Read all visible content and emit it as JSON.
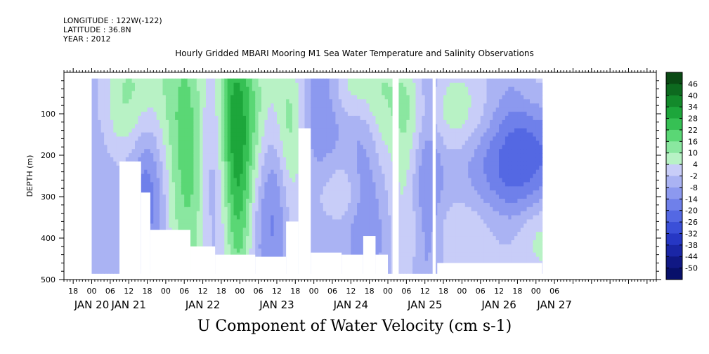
{
  "header": {
    "longitude": "LONGITUDE : 122W(-122)",
    "latitude": "LATITUDE : 36.8N",
    "year": "YEAR : 2012"
  },
  "title": "Hourly Gridded MBARI Mooring M1 Sea Water Temperature and Salinity Observations",
  "bottom_label": "U Component of Water Velocity (cm s-1)",
  "chart_data": {
    "type": "heatmap",
    "variable": "U Component of Water Velocity (cm s-1)",
    "ylabel": "DEPTH (m)",
    "ylim": [
      500,
      0
    ],
    "y_ticks": [
      100,
      200,
      300,
      400,
      500
    ],
    "x_range_hours": [
      -9,
      183
    ],
    "x_hour_labels": [
      "18",
      "00",
      "06",
      "12",
      "18",
      "00",
      "06",
      "12",
      "18",
      "00",
      "06",
      "12",
      "18",
      "00",
      "06",
      "12",
      "18",
      "00",
      "06",
      "12",
      "18",
      "00",
      "06",
      "12",
      "18",
      "00",
      "06"
    ],
    "x_hour_values": [
      -6,
      0,
      6,
      12,
      18,
      24,
      30,
      36,
      42,
      48,
      54,
      60,
      66,
      72,
      78,
      84,
      90,
      96,
      102,
      108,
      114,
      120,
      126,
      132,
      138,
      144,
      150
    ],
    "x_date_labels": [
      "JAN 20",
      "JAN 21",
      "JAN 22",
      "JAN 23",
      "JAN 24",
      "JAN 25",
      "JAN 26",
      "JAN 27"
    ],
    "x_date_values": [
      0,
      12,
      36,
      60,
      84,
      108,
      132,
      150
    ],
    "colorbar": {
      "levels": [
        48,
        46,
        40,
        34,
        28,
        22,
        16,
        10,
        4,
        -2,
        -8,
        -14,
        -20,
        -26,
        -32,
        -38,
        -44,
        -50
      ],
      "labels": [
        "46",
        "40",
        "34",
        "28",
        "22",
        "16",
        "10",
        "4",
        "-2",
        "-8",
        "-14",
        "-20",
        "-26",
        "-32",
        "-38",
        "-44",
        "-50"
      ],
      "colors": [
        "#0a4a14",
        "#0d6a1f",
        "#138a2b",
        "#1da63b",
        "#36c054",
        "#5ad775",
        "#8ae7a0",
        "#b8f2c5",
        "#c8cdf8",
        "#aab3f3",
        "#8c99ef",
        "#6f80ea",
        "#5468e3",
        "#3a4fd8",
        "#2637c4",
        "#1a26a6",
        "#101884",
        "#08106a"
      ]
    },
    "data_start_hour": 0,
    "data_end_hour": 146,
    "surface_depth": 15,
    "bottom_depth": 485,
    "gaps_hours": [
      [
        97.5,
        99.5
      ],
      [
        110.5,
        111.5
      ]
    ],
    "missing_regions": [
      {
        "x": [
          9,
          16
        ],
        "depth_from": 215
      },
      {
        "x": [
          16,
          19
        ],
        "depth_from": 290
      },
      {
        "x": [
          19,
          32
        ],
        "depth_from": 380
      },
      {
        "x": [
          32,
          40
        ],
        "depth_from": 420
      },
      {
        "x": [
          40,
          53
        ],
        "depth_from": 440
      },
      {
        "x": [
          53,
          63
        ],
        "depth_from": 445
      },
      {
        "x": [
          63,
          67
        ],
        "depth_from": 360
      },
      {
        "x": [
          67,
          71
        ],
        "depth_from": 135
      },
      {
        "x": [
          71,
          81
        ],
        "depth_from": 435
      },
      {
        "x": [
          81,
          88
        ],
        "depth_from": 440
      },
      {
        "x": [
          88,
          92
        ],
        "depth_from": 395
      },
      {
        "x": [
          92,
          96
        ],
        "depth_from": 440
      },
      {
        "x": [
          112,
          146
        ],
        "depth_from": 460
      }
    ],
    "velocity_field": [
      {
        "x": 2,
        "depth": 150,
        "value": -10,
        "sx": 6,
        "sy": 300
      },
      {
        "x": 6,
        "depth": 60,
        "value": 8,
        "sx": 6,
        "sy": 120
      },
      {
        "x": 14,
        "depth": 80,
        "value": 12,
        "sx": 6,
        "sy": 120
      },
      {
        "x": 18,
        "depth": 280,
        "value": -22,
        "sx": 5,
        "sy": 150
      },
      {
        "x": 28,
        "depth": 140,
        "value": 14,
        "sx": 6,
        "sy": 250
      },
      {
        "x": 33,
        "depth": 260,
        "value": 10,
        "sx": 4,
        "sy": 250
      },
      {
        "x": 40,
        "depth": 200,
        "value": -16,
        "sx": 4,
        "sy": 200
      },
      {
        "x": 45,
        "depth": 100,
        "value": 28,
        "sx": 4,
        "sy": 200
      },
      {
        "x": 48,
        "depth": 350,
        "value": 14,
        "sx": 3,
        "sy": 200
      },
      {
        "x": 53,
        "depth": 120,
        "value": 16,
        "sx": 4,
        "sy": 150
      },
      {
        "x": 58,
        "depth": 300,
        "value": -18,
        "sx": 5,
        "sy": 200
      },
      {
        "x": 63,
        "depth": 100,
        "value": 14,
        "sx": 4,
        "sy": 120
      },
      {
        "x": 65,
        "depth": 250,
        "value": 8,
        "sx": 3,
        "sy": 150
      },
      {
        "x": 75,
        "depth": 120,
        "value": -14,
        "sx": 6,
        "sy": 200
      },
      {
        "x": 80,
        "depth": 250,
        "value": 8,
        "sx": 6,
        "sy": 60
      },
      {
        "x": 80,
        "depth": 310,
        "value": 6,
        "sx": 6,
        "sy": 40
      },
      {
        "x": 84,
        "depth": 40,
        "value": 12,
        "sx": 5,
        "sy": 60
      },
      {
        "x": 93,
        "depth": 90,
        "value": 14,
        "sx": 4,
        "sy": 180
      },
      {
        "x": 90,
        "depth": 280,
        "value": -18,
        "sx": 5,
        "sy": 200
      },
      {
        "x": 103,
        "depth": 150,
        "value": 12,
        "sx": 4,
        "sy": 250
      },
      {
        "x": 108,
        "depth": 200,
        "value": -16,
        "sx": 4,
        "sy": 300
      },
      {
        "x": 118,
        "depth": 100,
        "value": 16,
        "sx": 12,
        "sy": 80
      },
      {
        "x": 125,
        "depth": 200,
        "value": -10,
        "sx": 15,
        "sy": 150
      },
      {
        "x": 140,
        "depth": 220,
        "value": -22,
        "sx": 10,
        "sy": 150
      },
      {
        "x": 125,
        "depth": 370,
        "value": 10,
        "sx": 12,
        "sy": 80
      },
      {
        "x": 145,
        "depth": 380,
        "value": 14,
        "sx": 6,
        "sy": 80
      },
      {
        "x": 144,
        "depth": 40,
        "value": 8,
        "sx": 5,
        "sy": 60
      }
    ]
  }
}
